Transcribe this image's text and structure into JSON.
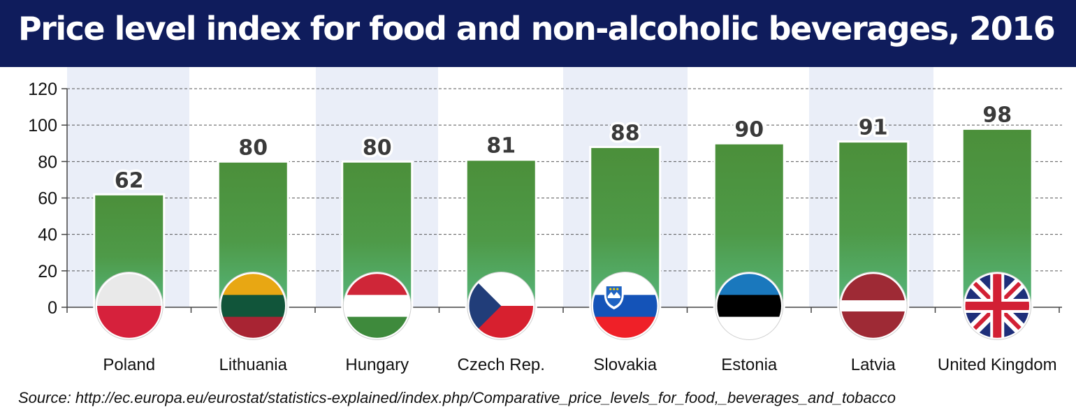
{
  "colors": {
    "title_bg": "#0f1c5c",
    "bar_top": "#4b8f3a",
    "bar_bottom": "#55b47a",
    "grid": "#555555"
  },
  "chart_data": {
    "type": "bar",
    "title": "Price level index for food and non-alcoholic beverages, 2016",
    "xlabel": "",
    "ylabel": "",
    "ylim": [
      0,
      120
    ],
    "yticks": [
      0,
      20,
      40,
      60,
      80,
      100,
      120
    ],
    "grid": true,
    "categories": [
      "Poland",
      "Lithuania",
      "Hungary",
      "Czech Rep.",
      "Slovakia",
      "Estonia",
      "Latvia",
      "United Kingdom"
    ],
    "values": [
      62,
      80,
      80,
      81,
      88,
      90,
      91,
      98
    ],
    "data_labels": [
      "62",
      "80",
      "80",
      "81",
      "88",
      "90",
      "91",
      "98"
    ],
    "flag_icons": [
      "poland-flag-icon",
      "lithuania-flag-icon",
      "hungary-flag-icon",
      "czech-flag-icon",
      "slovakia-flag-icon",
      "estonia-flag-icon",
      "latvia-flag-icon",
      "uk-flag-icon"
    ]
  },
  "source": "Source: http://ec.europa.eu/eurostat/statistics-explained/index.php/Comparative_price_levels_for_food,_beverages_and_tobacco"
}
